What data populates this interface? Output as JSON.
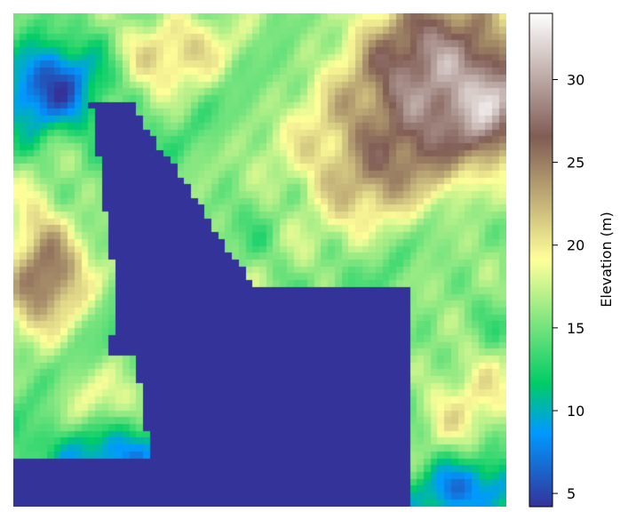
{
  "chart_data": {
    "type": "heatmap",
    "title": "",
    "colormap": "terrain",
    "grid_size": [
      72,
      72
    ],
    "value_range": [
      4.2,
      34
    ],
    "colorbar": {
      "label": "Elevation (m)",
      "ticks": [
        5,
        10,
        15,
        20,
        25,
        30
      ]
    },
    "axes_visible": false,
    "features": {
      "water_level": 4.2,
      "lake": "large low-lying water body running from upper-left centre down to the bottom edge",
      "highlands": "upper-right ridge reaching about 34 m, left-side hill about 28 m"
    }
  }
}
